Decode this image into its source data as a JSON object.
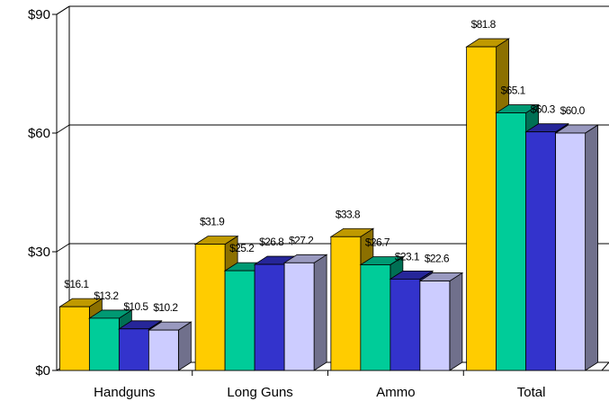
{
  "chart_data": {
    "type": "bar",
    "title": "",
    "xlabel": "",
    "ylabel": "",
    "categories": [
      "Handguns",
      "Long Guns",
      "Ammo",
      "Total"
    ],
    "series": [
      {
        "values": [
          16.1,
          31.9,
          33.8,
          81.8
        ],
        "labels": [
          "$16.1",
          "$31.9",
          "$33.8",
          "$81.8"
        ],
        "color": "#FFCC00"
      },
      {
        "values": [
          13.2,
          25.2,
          26.7,
          65.1
        ],
        "labels": [
          "$13.2",
          "$25.2",
          "$26.7",
          "$65.1"
        ],
        "color": "#00CC99"
      },
      {
        "values": [
          10.5,
          26.8,
          23.1,
          60.3
        ],
        "labels": [
          "$10.5",
          "$26.8",
          "$23.1",
          "$60.3"
        ],
        "color": "#3333CC"
      },
      {
        "values": [
          10.2,
          27.2,
          22.6,
          60.0
        ],
        "labels": [
          "$10.2",
          "$27.2",
          "$22.6",
          "$60.0"
        ],
        "color": "#CCCCFF"
      }
    ],
    "ylim": [
      0,
      90
    ],
    "yticks": [
      0,
      30,
      60,
      90
    ],
    "ytick_labels": [
      "$0",
      "$30",
      "$60",
      "$90"
    ],
    "grid": true,
    "legend": "none"
  }
}
